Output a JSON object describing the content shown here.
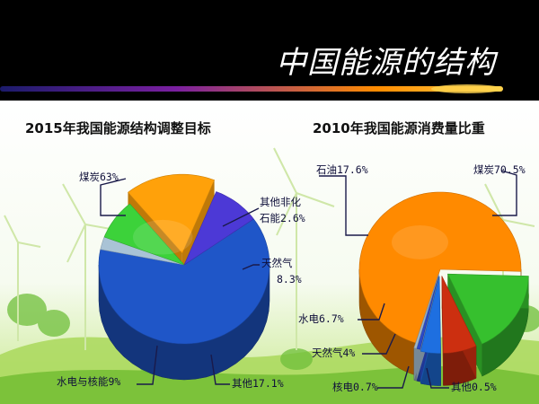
{
  "slide": {
    "title": "中国能源的结构"
  },
  "colors": {
    "background": "#000000",
    "panel": "#ffffff",
    "banner_gradient": [
      "#1b1b6b",
      "#7a1fa0",
      "#ff8c00",
      "#ffd34d"
    ],
    "ground_green": "#9bd34a"
  },
  "chart_data": [
    {
      "type": "pie",
      "title": "2015年我国能源结构调整目标",
      "categories": [
        "煤炭",
        "其他非化石能",
        "天然气",
        "其他",
        "水电与核能"
      ],
      "values": [
        63,
        2.6,
        8.3,
        17.1,
        9
      ],
      "colors": [
        "#1f56c8",
        "#a9c3d6",
        "#3cd23a",
        "#ffa10a",
        "#4c39d6"
      ],
      "labels": [
        {
          "key": "coal",
          "line1": "煤炭63%"
        },
        {
          "key": "non_fossil",
          "line1": "其他非化",
          "line2": "石能2.6%"
        },
        {
          "key": "gas",
          "line1": "天然气",
          "line2": "8.3%"
        },
        {
          "key": "other",
          "line1": "其他17.1%"
        },
        {
          "key": "hydro_nuclear",
          "line1": "水电与核能9%"
        }
      ],
      "legend": "none"
    },
    {
      "type": "pie",
      "title": "2010年我国能源消费量比重",
      "categories": [
        "煤炭",
        "石油",
        "水电",
        "天然气",
        "核电",
        "其他"
      ],
      "values": [
        70.5,
        17.6,
        6.7,
        4,
        0.7,
        0.5
      ],
      "colors": [
        "#ff8a00",
        "#36c02e",
        "#cc2f10",
        "#1e6fe0",
        "#2a49c8",
        "#9fb6c8"
      ],
      "labels": [
        {
          "key": "coal",
          "line1": "煤炭70.5%"
        },
        {
          "key": "oil",
          "line1": "石油17.6%"
        },
        {
          "key": "hydro",
          "line1": "水电6.7%"
        },
        {
          "key": "gas",
          "line1": "天然气4%"
        },
        {
          "key": "nuclear",
          "line1": "核电0.7%"
        },
        {
          "key": "other",
          "line1": "其他0.5%"
        }
      ],
      "legend": "none"
    }
  ]
}
